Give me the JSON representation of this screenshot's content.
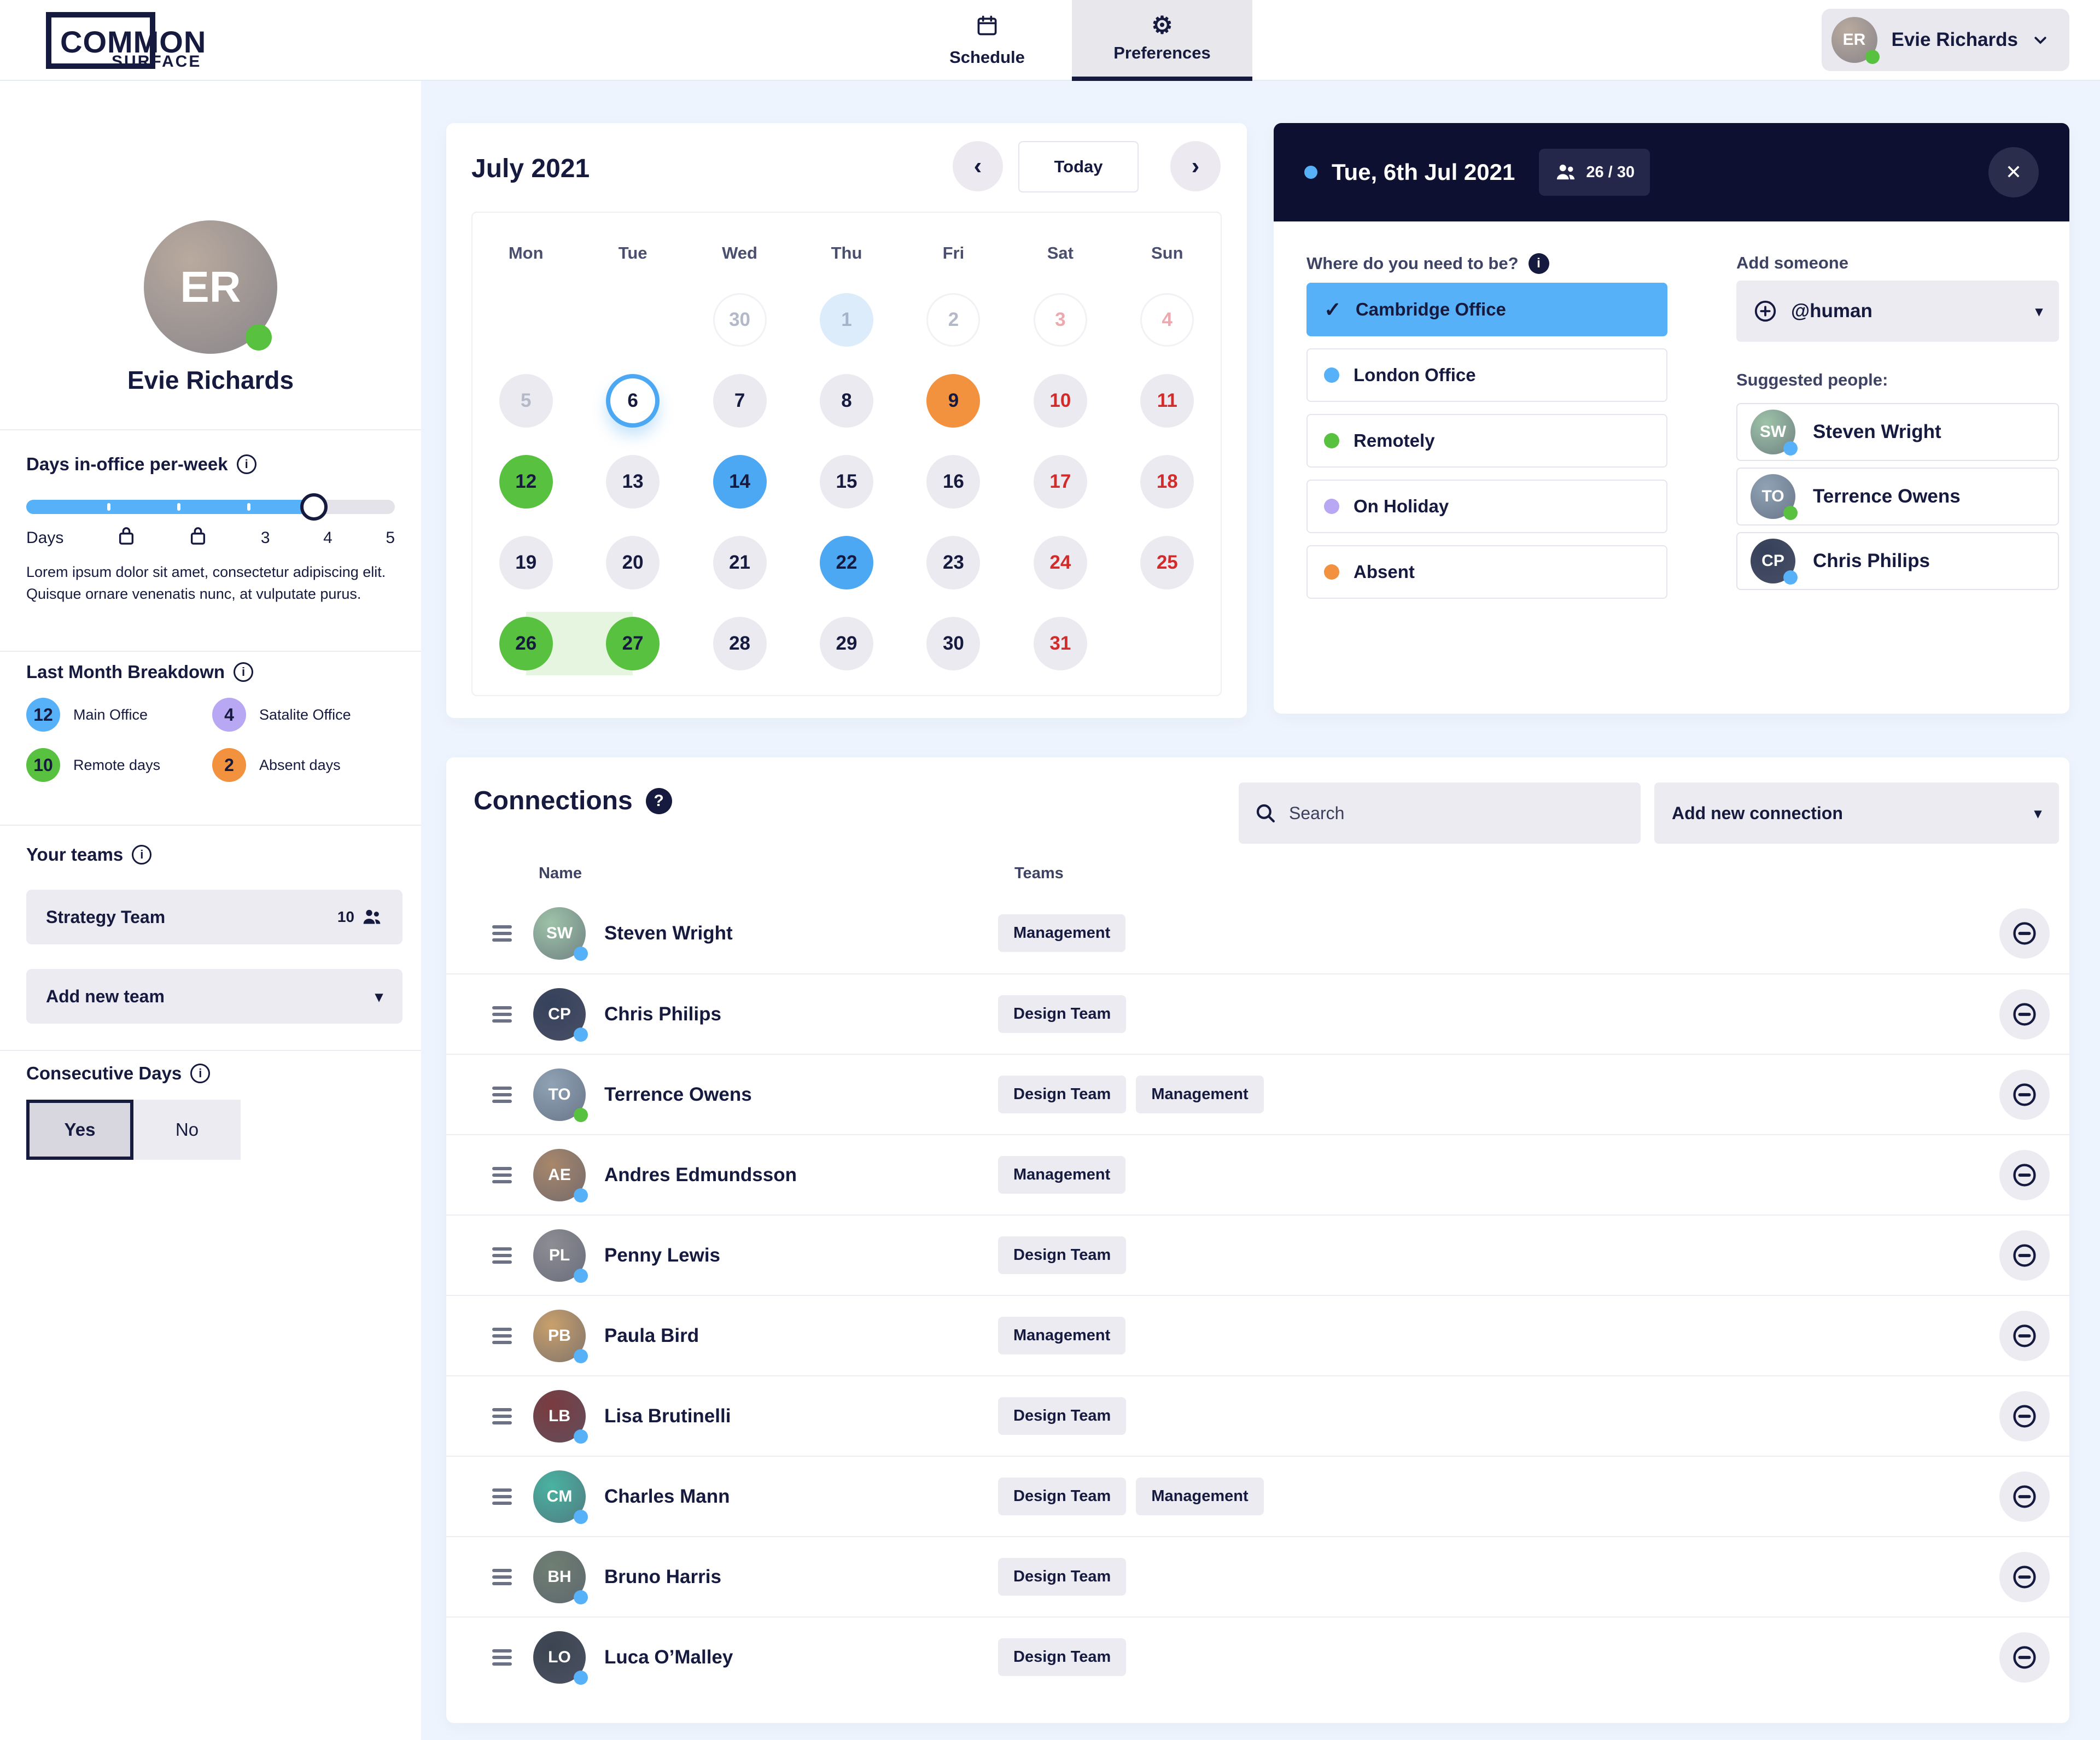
{
  "header": {
    "logo": {
      "line1": "COMMON",
      "line2": "SURFACE"
    },
    "tabs": [
      {
        "label": "Schedule"
      },
      {
        "label": "Preferences"
      }
    ],
    "user": {
      "name": "Evie Richards",
      "status_color": "#58c13f"
    }
  },
  "sidebar": {
    "profile": {
      "name": "Evie Richards",
      "status_color": "#58c13f",
      "avatar_color": "#b9aa9e"
    },
    "days": {
      "title": "Days in-office per-week",
      "fill_percent": 78,
      "scale": [
        {
          "text": "Days"
        },
        {
          "lock": true
        },
        {
          "lock": true
        },
        {
          "text": "3"
        },
        {
          "text": "4"
        },
        {
          "text": "5"
        }
      ],
      "description": "Lorem ipsum dolor sit amet, consectetur adipiscing elit. Quisque ornare venenatis nunc, at vulputate purus."
    },
    "breakdown": {
      "title": "Last Month Breakdown",
      "items": [
        {
          "value": "12",
          "label": "Main Office",
          "color": "#56b1f8"
        },
        {
          "value": "4",
          "label": "Satalite Office",
          "color": "#b8a7f2"
        },
        {
          "value": "10",
          "label": "Remote days",
          "color": "#58c13f"
        },
        {
          "value": "2",
          "label": "Absent days",
          "color": "#f2913e"
        }
      ]
    },
    "teams": {
      "title": "Your teams",
      "team": {
        "name": "Strategy Team",
        "count": "10"
      },
      "add_label": "Add new team"
    },
    "consecutive": {
      "title": "Consecutive Days",
      "yes_label": "Yes",
      "no_label": "No",
      "selected": "Yes"
    }
  },
  "calendar": {
    "title": "July 2021",
    "today_label": "Today",
    "day_headers": [
      "Mon",
      "Tue",
      "Wed",
      "Thu",
      "Fri",
      "Sat",
      "Sun"
    ],
    "cells": [
      {
        "d": "",
        "s": "empty"
      },
      {
        "d": "",
        "s": "empty"
      },
      {
        "d": "30",
        "s": "out"
      },
      {
        "d": "1",
        "s": "outtoday"
      },
      {
        "d": "2",
        "s": "out"
      },
      {
        "d": "3",
        "s": "outwk"
      },
      {
        "d": "4",
        "s": "outwk"
      },
      {
        "d": "5",
        "s": "past"
      },
      {
        "d": "6",
        "s": "ring"
      },
      {
        "d": "7"
      },
      {
        "d": "8"
      },
      {
        "d": "9",
        "s": "absent"
      },
      {
        "d": "10",
        "s": "wk"
      },
      {
        "d": "11",
        "s": "wk"
      },
      {
        "d": "12",
        "s": "remote"
      },
      {
        "d": "13"
      },
      {
        "d": "14",
        "s": "office"
      },
      {
        "d": "15"
      },
      {
        "d": "16"
      },
      {
        "d": "17",
        "s": "wk"
      },
      {
        "d": "18",
        "s": "wk"
      },
      {
        "d": "19"
      },
      {
        "d": "20"
      },
      {
        "d": "21"
      },
      {
        "d": "22",
        "s": "office"
      },
      {
        "d": "23"
      },
      {
        "d": "24",
        "s": "wk"
      },
      {
        "d": "25",
        "s": "wk"
      },
      {
        "d": "26",
        "s": "remote",
        "band": "start"
      },
      {
        "d": "27",
        "s": "remote",
        "band": "end"
      },
      {
        "d": "28"
      },
      {
        "d": "29"
      },
      {
        "d": "30"
      },
      {
        "d": "31",
        "s": "wk"
      },
      {
        "d": "",
        "s": "empty"
      }
    ]
  },
  "day_panel": {
    "date": "Tue, 6th Jul 2021",
    "capacity": "26 / 30",
    "question": "Where do you need to be?",
    "options": [
      {
        "label": "Cambridge Office",
        "selected": true,
        "color": "#56b1f8"
      },
      {
        "label": "London Office",
        "color": "#56b1f8"
      },
      {
        "label": "Remotely",
        "color": "#58c13f"
      },
      {
        "label": "On Holiday",
        "color": "#b8a7f2"
      },
      {
        "label": "Absent",
        "color": "#f2913e"
      }
    ],
    "add_title": "Add someone",
    "add_value": "@human",
    "suggested_title": "Suggested people:",
    "people": [
      {
        "name": "Steven Wright",
        "status_color": "#56b1f8",
        "avatar_color": "#9ec3a8"
      },
      {
        "name": "Terrence Owens",
        "status_color": "#58c13f",
        "avatar_color": "#8fa3b5"
      },
      {
        "name": "Chris Philips",
        "status_color": "#56b1f8",
        "avatar_color": "#35405a"
      }
    ]
  },
  "connections": {
    "title": "Connections",
    "search_placeholder": "Search",
    "add_label": "Add new connection",
    "columns": {
      "name": "Name",
      "teams": "Teams"
    },
    "rows": [
      {
        "name": "Steven Wright",
        "teams": [
          "Management"
        ],
        "status_color": "#56b1f8",
        "avatar_color": "#9ec3a8"
      },
      {
        "name": "Chris Philips",
        "teams": [
          "Design Team"
        ],
        "status_color": "#56b1f8",
        "avatar_color": "#35405a"
      },
      {
        "name": "Terrence Owens",
        "teams": [
          "Design Team",
          "Management"
        ],
        "status_color": "#58c13f",
        "avatar_color": "#8fa3b5"
      },
      {
        "name": "Andres Edmundsson",
        "teams": [
          "Management"
        ],
        "status_color": "#56b1f8",
        "avatar_color": "#a8876b"
      },
      {
        "name": "Penny Lewis",
        "teams": [
          "Design Team"
        ],
        "status_color": "#56b1f8",
        "avatar_color": "#8d8d93"
      },
      {
        "name": "Paula Bird",
        "teams": [
          "Management"
        ],
        "status_color": "#56b1f8",
        "avatar_color": "#c9a06b"
      },
      {
        "name": "Lisa Brutinelli",
        "teams": [
          "Design Team"
        ],
        "status_color": "#56b1f8",
        "avatar_color": "#7a3b3f"
      },
      {
        "name": "Charles Mann",
        "teams": [
          "Design Team",
          "Management"
        ],
        "status_color": "#56b1f8",
        "avatar_color": "#49b3a1"
      },
      {
        "name": "Bruno Harris",
        "teams": [
          "Design Team"
        ],
        "status_color": "#56b1f8",
        "avatar_color": "#6f7f72"
      },
      {
        "name": "Luca O’Malley",
        "teams": [
          "Design Team"
        ],
        "status_color": "#56b1f8",
        "avatar_color": "#3b4450"
      }
    ]
  }
}
